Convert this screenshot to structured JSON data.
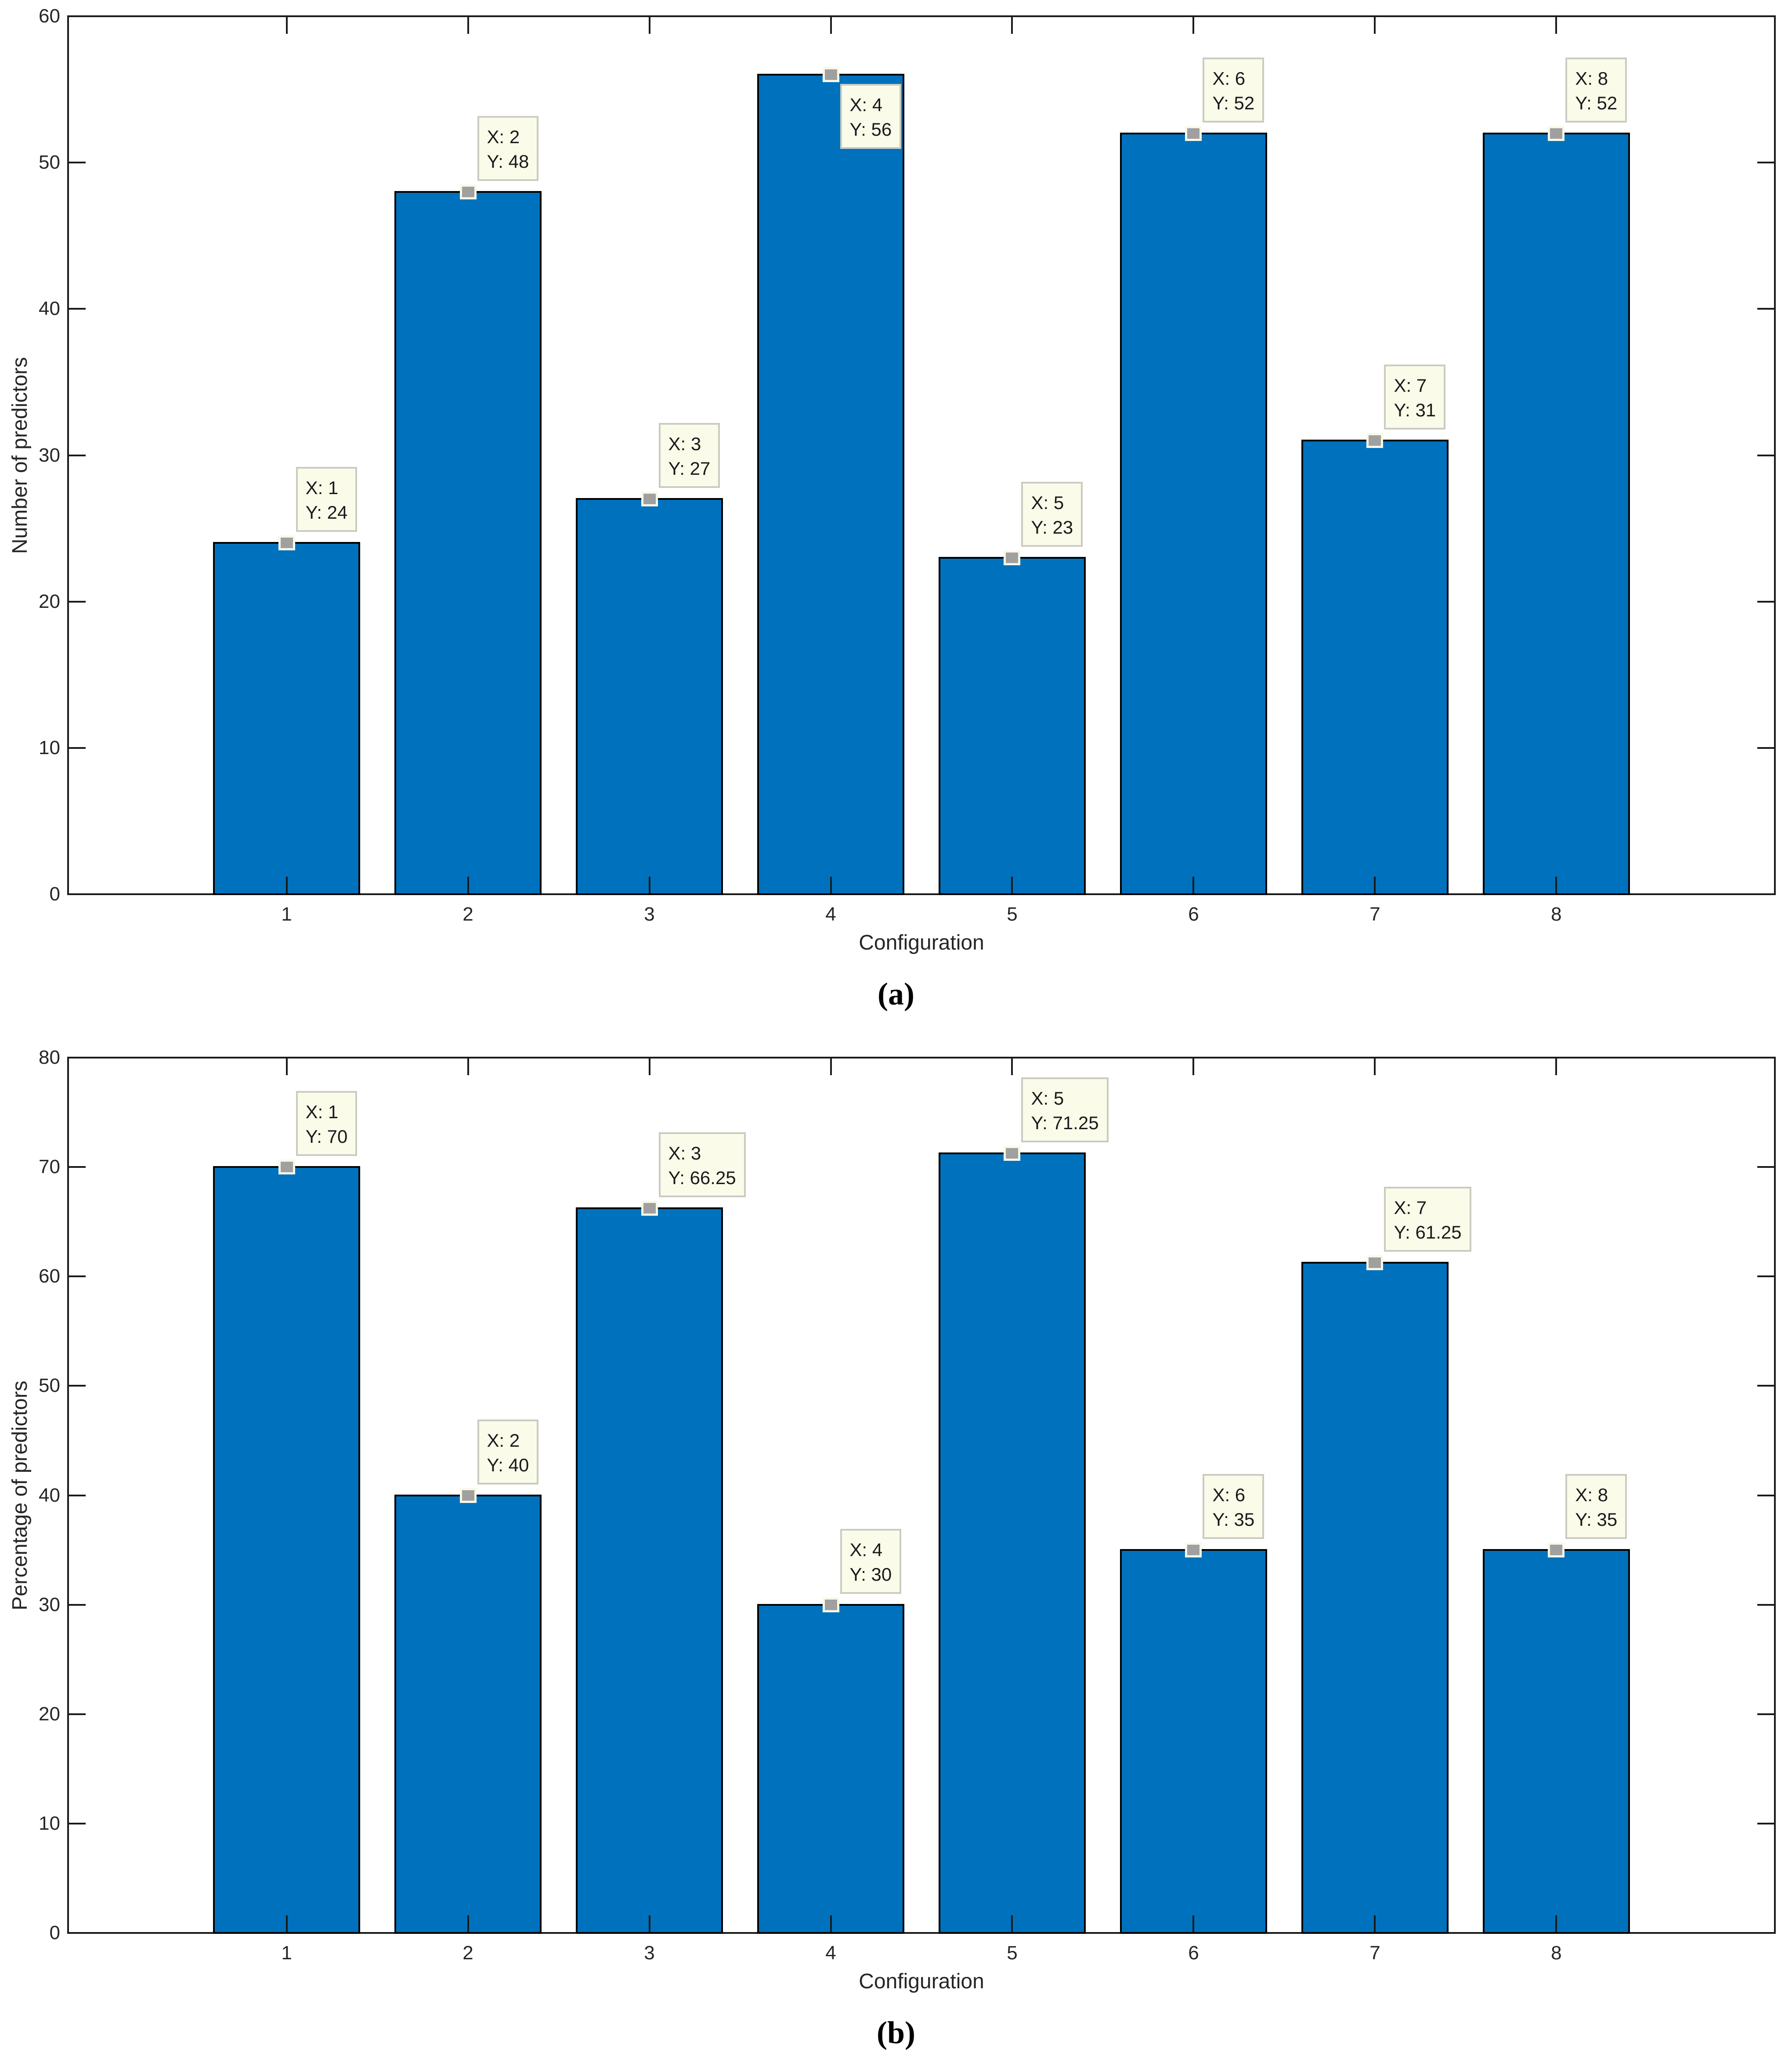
{
  "figure": {
    "panels_order": [
      "a",
      "b"
    ],
    "colors": {
      "bar_fill": "#0072BD",
      "bar_edge": "#000000",
      "axis_frame": "#1a1a1a",
      "tick_text": "#262626",
      "label_text": "#262626",
      "caption_text": "#000000",
      "datatip_bg": "#FBFBEA",
      "datatip_border": "#CBCBC1",
      "datatip_text": "#1a1a1a",
      "marker_fill": "#A0A0A0",
      "marker_edge": "#F8F8E8"
    }
  },
  "chart_data": [
    {
      "type": "bar",
      "panel": "a",
      "caption": "(a)",
      "xlabel": "Configuration",
      "ylabel": "Number of predictors",
      "categories": [
        1,
        2,
        3,
        4,
        5,
        6,
        7,
        8
      ],
      "values": [
        24,
        48,
        27,
        56,
        23,
        52,
        31,
        52
      ],
      "xlim": [
        -0.2,
        9.2
      ],
      "ylim": [
        0,
        60
      ],
      "yticks": [
        0,
        10,
        20,
        30,
        40,
        50,
        60
      ],
      "xticks": [
        1,
        2,
        3,
        4,
        5,
        6,
        7,
        8
      ],
      "grid": false,
      "legend": null,
      "bar_width_units": 0.8,
      "datatips": [
        {
          "x": 1,
          "y": 24,
          "x_label": "X: 1",
          "y_label": "Y: 24",
          "placement": "above"
        },
        {
          "x": 2,
          "y": 48,
          "x_label": "X: 2",
          "y_label": "Y: 48",
          "placement": "above"
        },
        {
          "x": 3,
          "y": 27,
          "x_label": "X: 3",
          "y_label": "Y: 27",
          "placement": "above"
        },
        {
          "x": 4,
          "y": 56,
          "x_label": "X: 4",
          "y_label": "Y: 56",
          "placement": "below"
        },
        {
          "x": 5,
          "y": 23,
          "x_label": "X: 5",
          "y_label": "Y: 23",
          "placement": "above"
        },
        {
          "x": 6,
          "y": 52,
          "x_label": "X: 6",
          "y_label": "Y: 52",
          "placement": "above"
        },
        {
          "x": 7,
          "y": 31,
          "x_label": "X: 7",
          "y_label": "Y: 31",
          "placement": "above"
        },
        {
          "x": 8,
          "y": 52,
          "x_label": "X: 8",
          "y_label": "Y: 52",
          "placement": "above"
        }
      ]
    },
    {
      "type": "bar",
      "panel": "b",
      "caption": "(b)",
      "xlabel": "Configuration",
      "ylabel": "Percentage of predictors",
      "categories": [
        1,
        2,
        3,
        4,
        5,
        6,
        7,
        8
      ],
      "values": [
        70,
        40,
        66.25,
        30,
        71.25,
        35,
        61.25,
        35
      ],
      "xlim": [
        -0.2,
        9.2
      ],
      "ylim": [
        0,
        80
      ],
      "yticks": [
        0,
        10,
        20,
        30,
        40,
        50,
        60,
        70,
        80
      ],
      "xticks": [
        1,
        2,
        3,
        4,
        5,
        6,
        7,
        8
      ],
      "grid": false,
      "legend": null,
      "bar_width_units": 0.8,
      "datatips": [
        {
          "x": 1,
          "y": 70,
          "x_label": "X: 1",
          "y_label": "Y: 70",
          "placement": "above"
        },
        {
          "x": 2,
          "y": 40,
          "x_label": "X: 2",
          "y_label": "Y: 40",
          "placement": "above"
        },
        {
          "x": 3,
          "y": 66.25,
          "x_label": "X: 3",
          "y_label": "Y: 66.25",
          "placement": "above"
        },
        {
          "x": 4,
          "y": 30,
          "x_label": "X: 4",
          "y_label": "Y: 30",
          "placement": "above"
        },
        {
          "x": 5,
          "y": 71.25,
          "x_label": "X: 5",
          "y_label": "Y: 71.25",
          "placement": "above"
        },
        {
          "x": 6,
          "y": 35,
          "x_label": "X: 6",
          "y_label": "Y: 35",
          "placement": "above"
        },
        {
          "x": 7,
          "y": 61.25,
          "x_label": "X: 7",
          "y_label": "Y: 61.25",
          "placement": "above"
        },
        {
          "x": 8,
          "y": 35,
          "x_label": "X: 8",
          "y_label": "Y: 35",
          "placement": "above"
        }
      ]
    }
  ]
}
